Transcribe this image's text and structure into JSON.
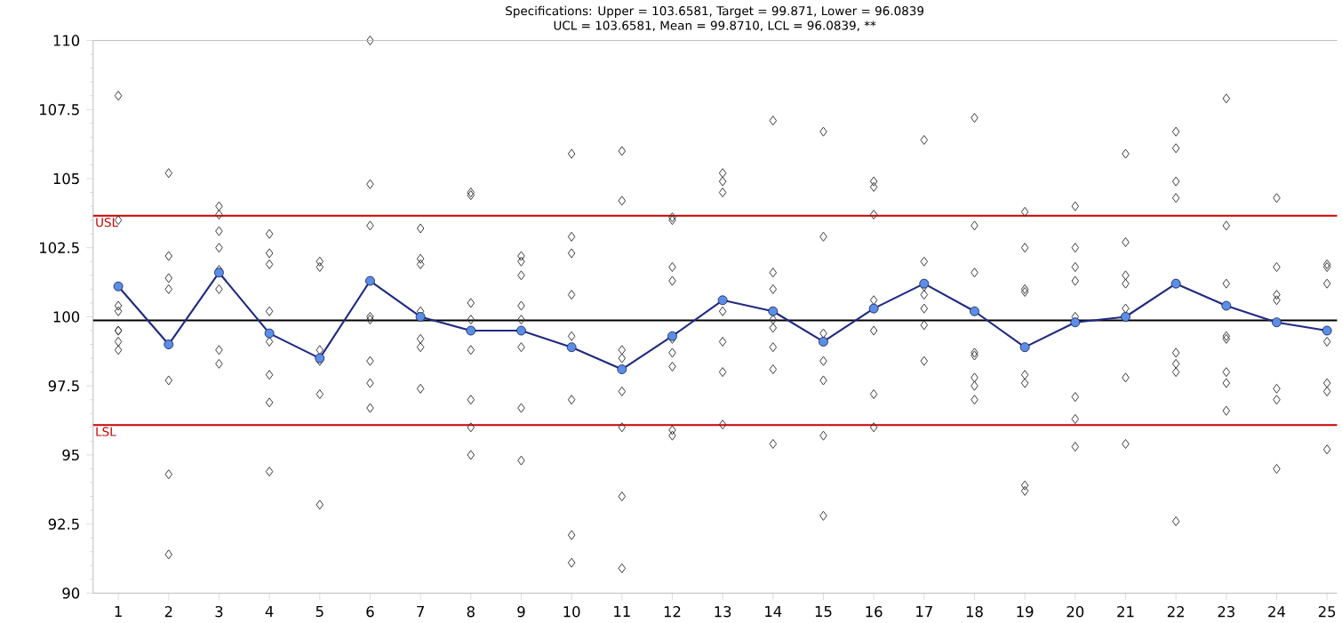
{
  "chart_data": {
    "type": "scatter",
    "title": "Specifications: Upper = 103.6581, Target = 99.871, Lower = 96.0839",
    "subtitle": "UCL = 103.6581, Mean = 99.8710, LCL = 96.0839, **",
    "categories": [
      "1",
      "2",
      "3",
      "4",
      "5",
      "6",
      "7",
      "8",
      "9",
      "10",
      "11",
      "12",
      "13",
      "14",
      "15",
      "16",
      "17",
      "18",
      "19",
      "20",
      "21",
      "22",
      "23",
      "24",
      "25"
    ],
    "ylim": [
      90,
      110
    ],
    "yticks": [
      90,
      92.5,
      95,
      97.5,
      100,
      102.5,
      105,
      107.5,
      110
    ],
    "grid": false,
    "series": [
      {
        "marker": "diamond",
        "color": "#333333",
        "x": [
          "1",
          "1",
          "1",
          "1",
          "1",
          "1",
          "1",
          "1",
          "2",
          "2",
          "2",
          "2",
          "2",
          "2",
          "2",
          "2",
          "3",
          "3",
          "3",
          "3",
          "3",
          "3",
          "3",
          "3",
          "4",
          "4",
          "4",
          "4",
          "4",
          "4",
          "4",
          "4",
          "5",
          "5",
          "5",
          "5",
          "5",
          "5",
          "6",
          "6",
          "6",
          "6",
          "6",
          "6",
          "6",
          "6",
          "7",
          "7",
          "7",
          "7",
          "7",
          "7",
          "7",
          "8",
          "8",
          "8",
          "8",
          "8",
          "8",
          "8",
          "8",
          "9",
          "9",
          "9",
          "9",
          "9",
          "9",
          "9",
          "9",
          "10",
          "10",
          "10",
          "10",
          "10",
          "10",
          "10",
          "10",
          "11",
          "11",
          "11",
          "11",
          "11",
          "11",
          "11",
          "11",
          "12",
          "12",
          "12",
          "12",
          "12",
          "12",
          "12",
          "12",
          "12",
          "13",
          "13",
          "13",
          "13",
          "13",
          "13",
          "13",
          "14",
          "14",
          "14",
          "14",
          "14",
          "14",
          "14",
          "14",
          "15",
          "15",
          "15",
          "15",
          "15",
          "15",
          "15",
          "16",
          "16",
          "16",
          "16",
          "16",
          "16",
          "16",
          "17",
          "17",
          "17",
          "17",
          "17",
          "17",
          "17",
          "18",
          "18",
          "18",
          "18",
          "18",
          "18",
          "18",
          "18",
          "19",
          "19",
          "19",
          "19",
          "19",
          "19",
          "19",
          "19",
          "20",
          "20",
          "20",
          "20",
          "20",
          "20",
          "20",
          "20",
          "21",
          "21",
          "21",
          "21",
          "21",
          "21",
          "21",
          "22",
          "22",
          "22",
          "22",
          "22",
          "22",
          "22",
          "22",
          "23",
          "23",
          "23",
          "23",
          "23",
          "23",
          "23",
          "23",
          "24",
          "24",
          "24",
          "24",
          "24",
          "24",
          "24",
          "25",
          "25",
          "25",
          "25",
          "25",
          "25",
          "25"
        ],
        "values": [
          108.0,
          103.5,
          100.4,
          100.2,
          99.5,
          99.5,
          99.1,
          98.8,
          105.2,
          102.2,
          101.4,
          101.0,
          99.0,
          97.7,
          94.3,
          91.4,
          104.0,
          103.7,
          103.1,
          102.5,
          101.7,
          101.0,
          98.8,
          98.3,
          103.0,
          102.3,
          101.9,
          100.2,
          99.1,
          97.9,
          96.9,
          94.4,
          102.0,
          101.8,
          98.8,
          98.4,
          97.2,
          93.2,
          110.0,
          104.8,
          103.3,
          100.0,
          99.9,
          98.4,
          97.6,
          96.7,
          103.2,
          102.1,
          101.9,
          100.2,
          99.2,
          98.9,
          97.4,
          104.5,
          104.4,
          100.5,
          99.9,
          98.8,
          97.0,
          96.0,
          95.0,
          102.2,
          102.0,
          101.5,
          100.4,
          99.9,
          98.9,
          96.7,
          94.8,
          105.9,
          102.9,
          102.3,
          100.8,
          99.3,
          97.0,
          92.1,
          91.1,
          106.0,
          104.2,
          98.8,
          98.5,
          97.3,
          96.0,
          93.5,
          90.9,
          103.6,
          103.5,
          101.8,
          101.3,
          99.2,
          98.7,
          98.2,
          95.9,
          95.7,
          105.2,
          104.9,
          104.5,
          100.2,
          99.1,
          98.0,
          96.1,
          107.1,
          101.6,
          101.0,
          99.9,
          99.6,
          98.9,
          98.1,
          95.4,
          106.7,
          102.9,
          99.4,
          98.4,
          97.7,
          95.7,
          92.8,
          104.9,
          104.7,
          103.7,
          100.6,
          99.5,
          97.2,
          96.0,
          106.4,
          102.0,
          101.1,
          100.8,
          100.3,
          99.7,
          98.4,
          107.2,
          103.3,
          101.6,
          98.7,
          98.6,
          97.8,
          97.5,
          97.0,
          103.8,
          102.5,
          101.0,
          100.9,
          97.9,
          97.6,
          93.9,
          93.7,
          104.0,
          102.5,
          101.8,
          101.3,
          100.0,
          97.1,
          96.3,
          95.3,
          105.9,
          102.7,
          101.5,
          101.2,
          100.3,
          97.8,
          95.4,
          106.7,
          106.1,
          104.9,
          104.3,
          98.7,
          98.3,
          98.0,
          92.6,
          107.9,
          103.3,
          101.2,
          99.3,
          99.2,
          98.0,
          97.6,
          96.6,
          104.3,
          101.8,
          100.8,
          100.6,
          97.4,
          97.0,
          94.5,
          101.9,
          101.8,
          101.2,
          99.1,
          97.6,
          97.3,
          95.2
        ]
      },
      {
        "type": "line",
        "marker": "circle",
        "line_style": "solid",
        "color": "#202a80",
        "values": [
          101.1,
          99.0,
          101.6,
          99.4,
          98.5,
          101.3,
          100.0,
          99.5,
          99.5,
          98.9,
          98.1,
          99.3,
          100.6,
          100.2,
          99.1,
          100.3,
          101.2,
          100.2,
          98.9,
          99.8,
          100.0,
          101.2,
          100.4,
          99.8,
          99.5
        ]
      }
    ],
    "ref_lines": [
      {
        "axis": "y",
        "value": 103.6581,
        "label": "USL",
        "color": "#cc0000"
      },
      {
        "axis": "y",
        "value": 96.0839,
        "label": "LSL",
        "color": "#cc0000"
      },
      {
        "axis": "y",
        "value": 99.871,
        "label": null,
        "color": "#000000"
      }
    ]
  }
}
